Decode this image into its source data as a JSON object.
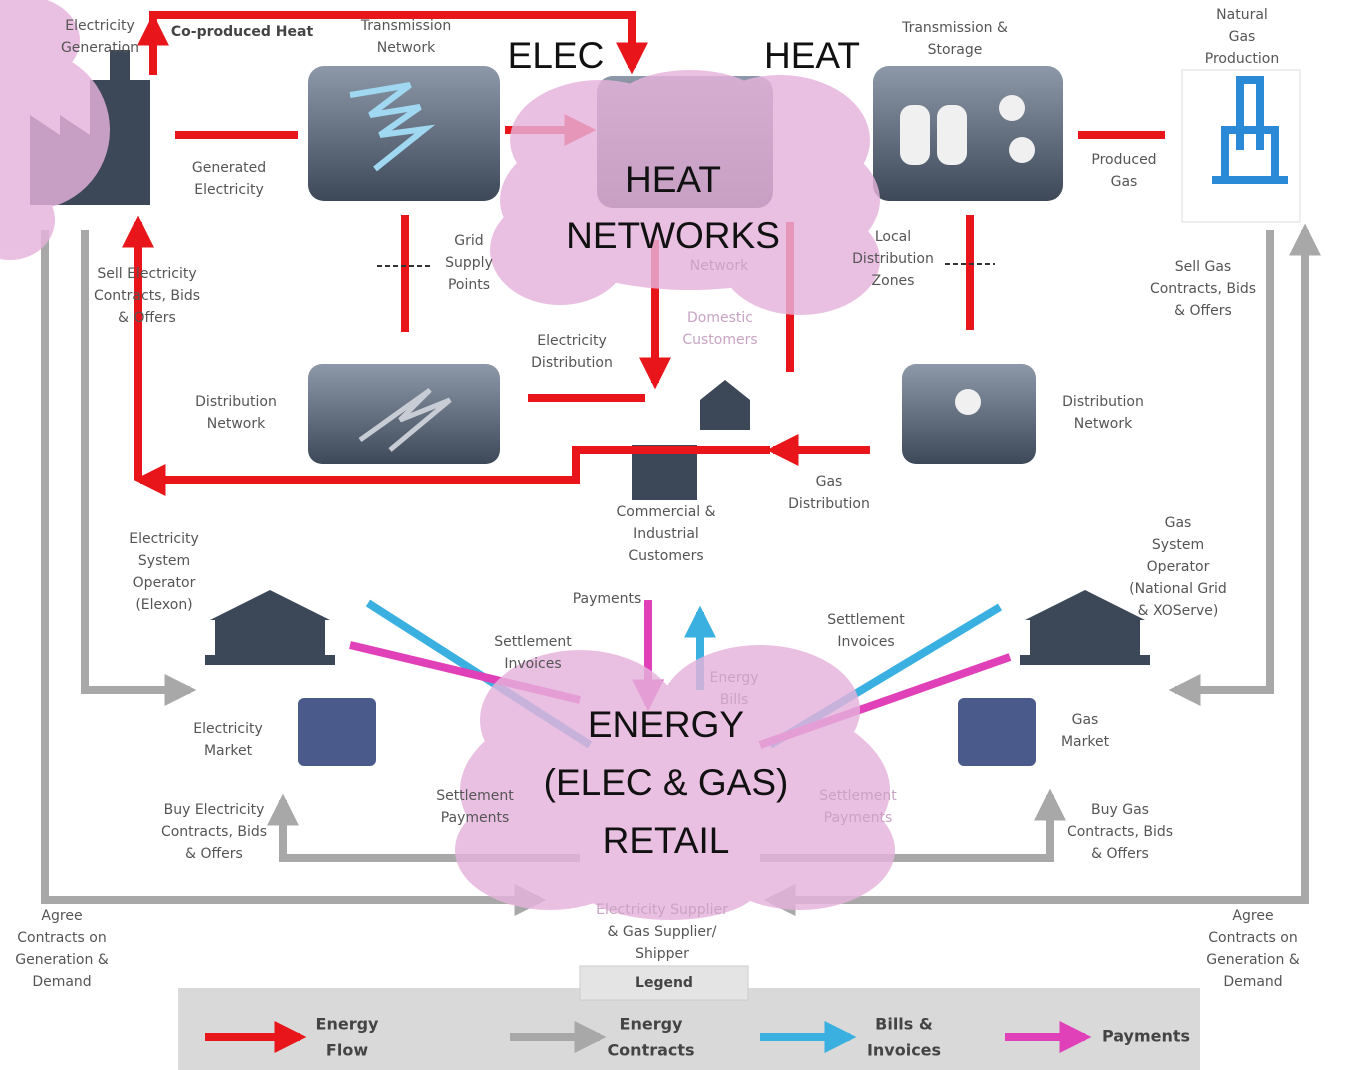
{
  "labels": {
    "electricity_generation": [
      "Electricity",
      "Generation"
    ],
    "co_produced_heat": [
      "Co-produced Heat"
    ],
    "transmission_network": [
      "Transmission",
      "Network"
    ],
    "elec": [
      "ELEC"
    ],
    "heat": [
      "HEAT"
    ],
    "transmission_storage": [
      "Transmission &",
      "Storage"
    ],
    "natural_gas_production": [
      "Natural",
      "Gas",
      "Production"
    ],
    "generated_electricity": [
      "Generated",
      "Electricity"
    ],
    "produced_gas": [
      "Produced",
      "Gas"
    ],
    "heat_networks": [
      "HEAT",
      "NETWORKS"
    ],
    "grid_supply_points": [
      "Grid",
      "Supply",
      "Points"
    ],
    "network": [
      "Network"
    ],
    "local_distribution_zones": [
      "Local",
      "Distribution",
      "Zones"
    ],
    "sell_electricity": [
      "Sell Electricity",
      "Contracts, Bids",
      "& Offers"
    ],
    "sell_gas": [
      "Sell Gas",
      "Contracts, Bids",
      "& Offers"
    ],
    "domestic_customers": [
      "Domestic",
      "Customers"
    ],
    "electricity_distribution": [
      "Electricity",
      "Distribution"
    ],
    "distribution_network_left": [
      "Distribution",
      "Network"
    ],
    "distribution_network_right": [
      "Distribution",
      "Network"
    ],
    "gas_distribution": [
      "Gas",
      "Distribution"
    ],
    "commercial_industrial": [
      "Commercial &",
      "Industrial",
      "Customers"
    ],
    "electricity_system_operator": [
      "Electricity",
      "System",
      "Operator",
      "(Elexon)"
    ],
    "gas_system_operator": [
      "Gas",
      "System",
      "Operator",
      "(National Grid",
      "& XOServe)"
    ],
    "payments": [
      "Payments"
    ],
    "settlement_invoices_left": [
      "Settlement",
      "Invoices"
    ],
    "settlement_invoices_right": [
      "Settlement",
      "Invoices"
    ],
    "energy_bills": [
      "Energy",
      "Bills"
    ],
    "electricity_market": [
      "Electricity",
      "Market"
    ],
    "gas_market": [
      "Gas",
      "Market"
    ],
    "energy_retail": [
      "ENERGY",
      "(ELEC & GAS)",
      "RETAIL"
    ],
    "settlement_payments_left": [
      "Settlement",
      "Payments"
    ],
    "settlement_payments_right": [
      "Settlement",
      "Payments"
    ],
    "buy_electricity": [
      "Buy Electricity",
      "Contracts, Bids",
      "& Offers"
    ],
    "buy_gas": [
      "Buy Gas",
      "Contracts, Bids",
      "& Offers"
    ],
    "agree_left": [
      "Agree",
      "Contracts on",
      "Generation &",
      "Demand"
    ],
    "agree_right": [
      "Agree",
      "Contracts on",
      "Generation &",
      "Demand"
    ],
    "supplier": [
      "Electricity Supplier",
      "& Gas Supplier/",
      "Shipper"
    ]
  },
  "legend": {
    "title": "Legend",
    "items": [
      [
        "Energy",
        "Flow"
      ],
      [
        "Energy",
        "Contracts"
      ],
      [
        "Bills &",
        "Invoices"
      ],
      [
        "Payments"
      ]
    ]
  }
}
